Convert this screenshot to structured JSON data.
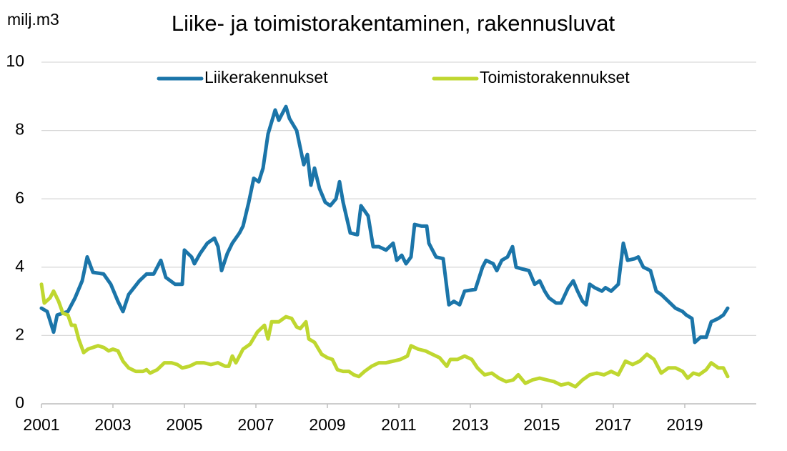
{
  "chart_data": {
    "type": "line",
    "title": "Liike- ja toimistorakentaminen, rakennusluvat",
    "y_label": "milj.m3",
    "xlim": [
      2001,
      2021
    ],
    "xticks": [
      2001,
      2003,
      2005,
      2007,
      2009,
      2011,
      2013,
      2015,
      2017,
      2019
    ],
    "ylim": [
      0,
      10
    ],
    "yticks": [
      0,
      2,
      4,
      6,
      8,
      10
    ],
    "grid": true,
    "legend": "top",
    "series": [
      {
        "name": "Liikerakennukset",
        "color": "#1b75a9",
        "x": [
          2001.0,
          2001.16,
          2001.34,
          2001.44,
          2001.74,
          2001.94,
          2002.14,
          2002.28,
          2002.44,
          2002.74,
          2002.94,
          2003.14,
          2003.28,
          2003.44,
          2003.74,
          2003.94,
          2004.14,
          2004.34,
          2004.48,
          2004.74,
          2004.94,
          2005.0,
          2005.2,
          2005.28,
          2005.44,
          2005.64,
          2005.84,
          2005.94,
          2006.04,
          2006.2,
          2006.34,
          2006.54,
          2006.64,
          2006.8,
          2006.94,
          2007.08,
          2007.2,
          2007.34,
          2007.54,
          2007.64,
          2007.84,
          2007.94,
          2008.14,
          2008.34,
          2008.44,
          2008.54,
          2008.64,
          2008.78,
          2008.94,
          2009.08,
          2009.24,
          2009.34,
          2009.44,
          2009.64,
          2009.84,
          2009.94,
          2010.14,
          2010.28,
          2010.44,
          2010.64,
          2010.84,
          2010.94,
          2011.08,
          2011.2,
          2011.34,
          2011.44,
          2011.64,
          2011.78,
          2011.84,
          2012.04,
          2012.24,
          2012.4,
          2012.54,
          2012.7,
          2012.84,
          2013.14,
          2013.34,
          2013.44,
          2013.64,
          2013.74,
          2013.88,
          2014.04,
          2014.18,
          2014.28,
          2014.44,
          2014.64,
          2014.8,
          2014.94,
          2015.08,
          2015.2,
          2015.4,
          2015.54,
          2015.74,
          2015.88,
          2016.0,
          2016.14,
          2016.24,
          2016.34,
          2016.48,
          2016.68,
          2016.78,
          2016.94,
          2017.14,
          2017.28,
          2017.4,
          2017.6,
          2017.7,
          2017.84,
          2018.04,
          2018.2,
          2018.34,
          2018.54,
          2018.74,
          2018.94,
          2019.04,
          2019.2,
          2019.28,
          2019.44,
          2019.6,
          2019.74,
          2019.94,
          2020.08,
          2020.2
        ],
        "values": [
          2.8,
          2.7,
          2.1,
          2.6,
          2.7,
          3.1,
          3.6,
          4.3,
          3.85,
          3.8,
          3.5,
          3.0,
          2.7,
          3.2,
          3.6,
          3.8,
          3.8,
          4.2,
          3.7,
          3.5,
          3.5,
          4.5,
          4.3,
          4.1,
          4.4,
          4.7,
          4.85,
          4.6,
          3.9,
          4.4,
          4.7,
          5.0,
          5.2,
          5.9,
          6.6,
          6.5,
          6.9,
          7.9,
          8.6,
          8.3,
          8.7,
          8.35,
          8.0,
          7.0,
          7.3,
          6.4,
          6.9,
          6.3,
          5.9,
          5.8,
          6.0,
          6.5,
          5.9,
          5.0,
          4.95,
          5.8,
          5.5,
          4.6,
          4.6,
          4.5,
          4.7,
          4.2,
          4.35,
          4.1,
          4.3,
          5.25,
          5.2,
          5.2,
          4.7,
          4.3,
          4.25,
          2.9,
          3.0,
          2.9,
          3.3,
          3.35,
          4.0,
          4.2,
          4.1,
          3.9,
          4.2,
          4.3,
          4.6,
          4.0,
          3.95,
          3.9,
          3.5,
          3.6,
          3.3,
          3.1,
          2.95,
          2.95,
          3.4,
          3.6,
          3.3,
          3.0,
          2.9,
          3.5,
          3.4,
          3.3,
          3.4,
          3.3,
          3.5,
          4.7,
          4.2,
          4.25,
          4.3,
          4.0,
          3.9,
          3.3,
          3.2,
          3.0,
          2.8,
          2.7,
          2.6,
          2.5,
          1.8,
          1.95,
          1.95,
          2.4,
          2.5,
          2.6,
          2.8
        ]
      },
      {
        "name": "Toimistorakennukset",
        "color": "#bfd730",
        "x": [
          2001.0,
          2001.08,
          2001.24,
          2001.34,
          2001.48,
          2001.6,
          2001.74,
          2001.84,
          2001.94,
          2002.04,
          2002.18,
          2002.3,
          2002.44,
          2002.58,
          2002.74,
          2002.88,
          2003.0,
          2003.14,
          2003.28,
          2003.44,
          2003.64,
          2003.84,
          2003.94,
          2004.04,
          2004.24,
          2004.44,
          2004.64,
          2004.8,
          2004.94,
          2005.14,
          2005.34,
          2005.54,
          2005.74,
          2005.94,
          2006.14,
          2006.24,
          2006.34,
          2006.44,
          2006.64,
          2006.84,
          2007.04,
          2007.24,
          2007.34,
          2007.44,
          2007.64,
          2007.84,
          2008.0,
          2008.14,
          2008.24,
          2008.4,
          2008.48,
          2008.64,
          2008.84,
          2009.0,
          2009.14,
          2009.28,
          2009.44,
          2009.6,
          2009.74,
          2009.88,
          2010.04,
          2010.24,
          2010.44,
          2010.64,
          2010.84,
          2011.04,
          2011.24,
          2011.34,
          2011.54,
          2011.74,
          2011.94,
          2012.14,
          2012.34,
          2012.44,
          2012.64,
          2012.84,
          2013.04,
          2013.2,
          2013.4,
          2013.6,
          2013.8,
          2014.0,
          2014.2,
          2014.34,
          2014.54,
          2014.74,
          2014.94,
          2015.14,
          2015.34,
          2015.54,
          2015.74,
          2015.94,
          2016.14,
          2016.34,
          2016.54,
          2016.74,
          2016.94,
          2017.14,
          2017.34,
          2017.54,
          2017.74,
          2017.94,
          2018.14,
          2018.34,
          2018.54,
          2018.74,
          2018.94,
          2019.08,
          2019.24,
          2019.4,
          2019.6,
          2019.74,
          2019.94,
          2020.08,
          2020.2
        ],
        "values": [
          3.5,
          2.95,
          3.1,
          3.3,
          3.0,
          2.65,
          2.6,
          2.3,
          2.3,
          1.9,
          1.5,
          1.6,
          1.65,
          1.7,
          1.65,
          1.55,
          1.6,
          1.55,
          1.25,
          1.05,
          0.95,
          0.95,
          1.0,
          0.9,
          1.0,
          1.2,
          1.2,
          1.15,
          1.05,
          1.1,
          1.2,
          1.2,
          1.15,
          1.2,
          1.1,
          1.1,
          1.4,
          1.2,
          1.6,
          1.75,
          2.1,
          2.3,
          1.9,
          2.4,
          2.4,
          2.55,
          2.5,
          2.25,
          2.2,
          2.4,
          1.9,
          1.8,
          1.45,
          1.35,
          1.3,
          1.0,
          0.95,
          0.95,
          0.85,
          0.8,
          0.95,
          1.1,
          1.2,
          1.2,
          1.25,
          1.3,
          1.4,
          1.7,
          1.6,
          1.55,
          1.45,
          1.35,
          1.1,
          1.3,
          1.3,
          1.4,
          1.3,
          1.05,
          0.85,
          0.9,
          0.75,
          0.65,
          0.7,
          0.85,
          0.6,
          0.7,
          0.75,
          0.7,
          0.65,
          0.55,
          0.6,
          0.5,
          0.7,
          0.85,
          0.9,
          0.85,
          0.95,
          0.85,
          1.25,
          1.15,
          1.25,
          1.45,
          1.3,
          0.9,
          1.05,
          1.05,
          0.95,
          0.75,
          0.9,
          0.85,
          1.0,
          1.2,
          1.05,
          1.05,
          0.8
        ]
      }
    ]
  }
}
